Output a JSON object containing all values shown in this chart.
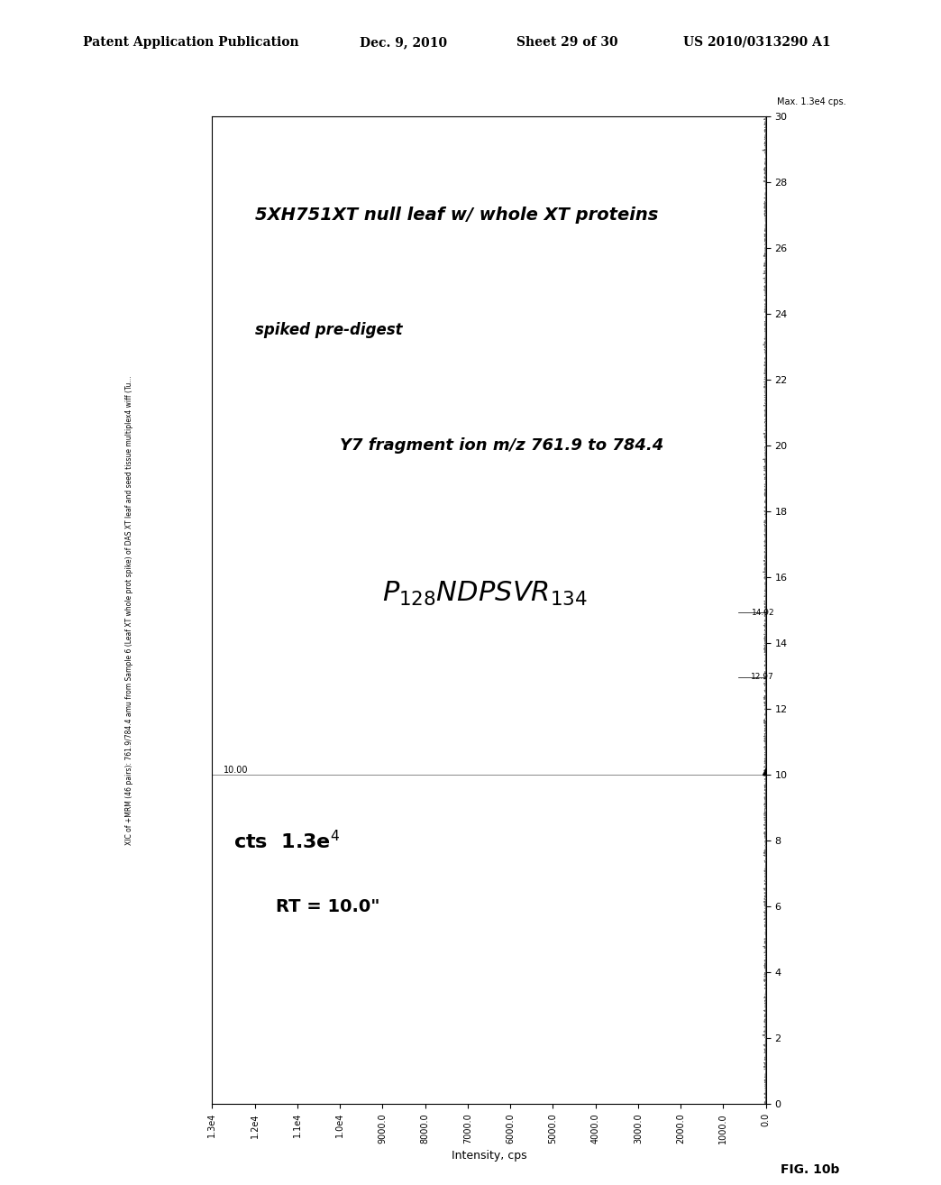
{
  "page_header": "Patent Application Publication",
  "page_date": "Dec. 9, 2010",
  "page_sheet": "Sheet 29 of 30",
  "page_patent": "US 2010/0313290 A1",
  "fig_label": "FIG. 10b",
  "chart_title_rotated": "XIC of +MRM (46 pairs): 761.9/784.4 amu from Sample 6 (Leaf XT whole prot spike) of DAS XT leaf and seed tissue multiplex4 wiff (Tu...",
  "max_label": "Max. 1.3e4 cps.",
  "annotation1_bold": "5XH751XT null leaf w/ whole XT proteins",
  "annotation2": "spiked pre-digest",
  "annotation3_bold": "Y7 fragment ion m/z 761.9 to 784.4",
  "annotation4_main": "P",
  "annotation4_sub128": "128",
  "annotation4_peptide": "NDPSVR",
  "annotation4_sub134": "134",
  "cts_label": "cts 1.3e",
  "cts_exp": "4",
  "rt_label": "RT = 10.0\"",
  "bg_color": "#ffffff",
  "line_color": "#808080",
  "peak_x": 10.0,
  "x_min": 0.0,
  "x_max": 30.0,
  "x_ticks": [
    0,
    2,
    4,
    6,
    8,
    10,
    12,
    14,
    16,
    18,
    20,
    22,
    24,
    26,
    28,
    30
  ],
  "x_label_10": "10.00",
  "x_label_1297": "12.97",
  "x_label_1492": "14.92",
  "y_ticks_labels": [
    "1.3e4",
    "1.2e4",
    "1.1e4",
    "1.0e4",
    "9000.0",
    "8000.0",
    "7000.0",
    "6000.0",
    "5000.0",
    "4000.0",
    "3000.0",
    "2000.0",
    "1000.0",
    "0.0"
  ],
  "y_ticks_values": [
    13000,
    12000,
    11000,
    10000,
    9000,
    8000,
    7000,
    6000,
    5000,
    4000,
    3000,
    2000,
    1000,
    0
  ],
  "y_axis_label": "Intensity, cps"
}
